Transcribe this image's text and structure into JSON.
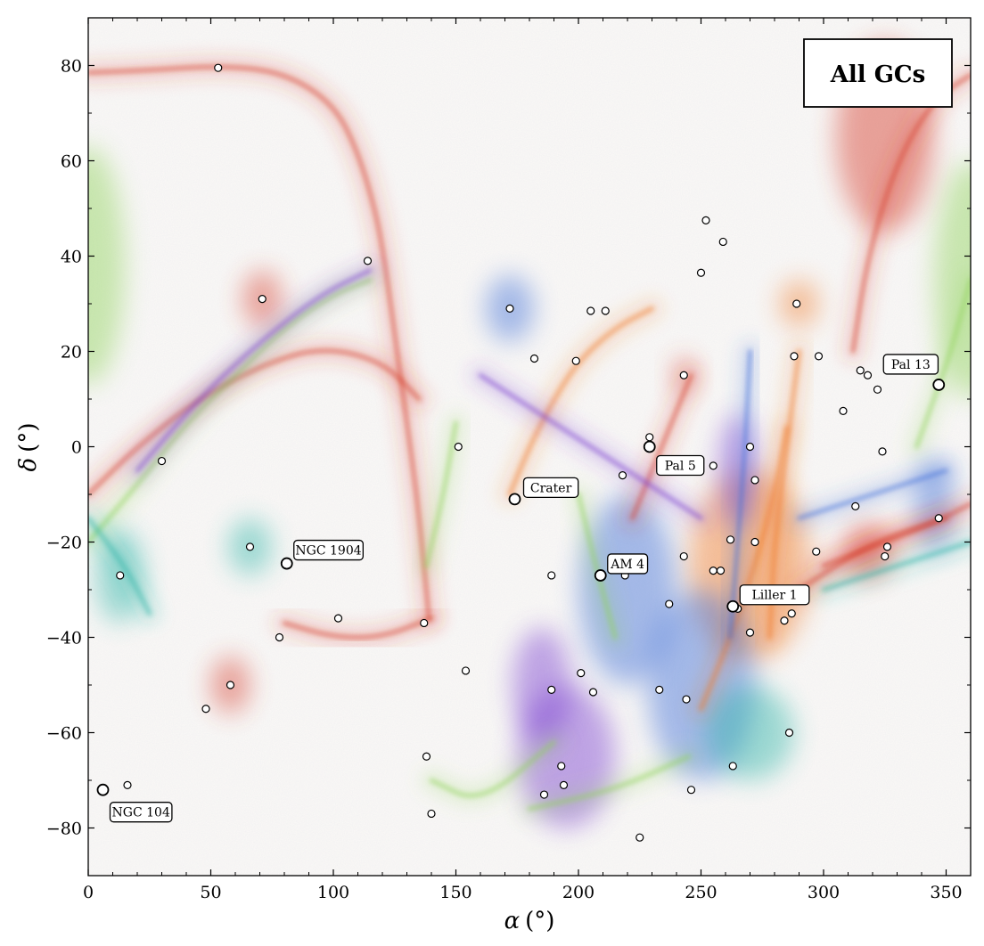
{
  "chart_data": {
    "type": "scatter",
    "title": "",
    "legend_label": "All GCs",
    "legend_position": "top-right",
    "xlabel_symbol": "α",
    "xlabel_unit": "(°)",
    "ylabel_symbol": "δ",
    "ylabel_unit": "(°)",
    "xlim": [
      0,
      360
    ],
    "ylim": [
      -90,
      90
    ],
    "xticks": [
      0,
      50,
      100,
      150,
      200,
      250,
      300,
      350
    ],
    "yticks": [
      -80,
      -60,
      -40,
      -20,
      0,
      20,
      40,
      60,
      80
    ],
    "grid": false,
    "colors": {
      "red": "#d63a2a",
      "orange": "#f07a2a",
      "blue": "#3f6fd8",
      "purple": "#7a3fd0",
      "teal": "#2fb5a8",
      "green": "#8fd35a",
      "point_fill": "#ffffff",
      "point_edge": "#000000"
    },
    "streams": [
      {
        "color": "red",
        "points": [
          [
            0,
            78.5
          ],
          [
            25,
            79
          ],
          [
            55,
            80
          ],
          [
            80,
            78.5
          ],
          [
            100,
            72
          ],
          [
            110,
            62
          ],
          [
            118,
            48
          ],
          [
            122,
            35
          ],
          [
            126,
            20
          ],
          [
            130,
            5
          ],
          [
            134,
            -10
          ],
          [
            137,
            -25
          ],
          [
            139,
            -36
          ]
        ]
      },
      {
        "color": "red",
        "points": [
          [
            0,
            -10
          ],
          [
            20,
            0
          ],
          [
            45,
            10
          ],
          [
            70,
            17
          ],
          [
            95,
            21
          ],
          [
            120,
            18
          ],
          [
            135,
            10
          ]
        ]
      },
      {
        "color": "green",
        "points": [
          [
            0,
            -20
          ],
          [
            20,
            -8
          ],
          [
            40,
            5
          ],
          [
            60,
            15
          ],
          [
            80,
            25
          ],
          [
            100,
            32
          ],
          [
            115,
            35
          ]
        ]
      },
      {
        "color": "purple",
        "points": [
          [
            20,
            -5
          ],
          [
            45,
            10
          ],
          [
            70,
            22
          ],
          [
            95,
            32
          ],
          [
            115,
            37
          ]
        ]
      },
      {
        "color": "orange",
        "points": [
          [
            172,
            -10
          ],
          [
            180,
            0
          ],
          [
            190,
            10
          ],
          [
            200,
            18
          ],
          [
            215,
            25
          ],
          [
            230,
            29
          ]
        ]
      },
      {
        "color": "red",
        "points": [
          [
            222,
            -15
          ],
          [
            230,
            -5
          ],
          [
            238,
            5
          ],
          [
            246,
            15
          ]
        ]
      },
      {
        "color": "orange",
        "points": [
          [
            285,
            4
          ],
          [
            280,
            -10
          ],
          [
            272,
            -25
          ],
          [
            262,
            -40
          ],
          [
            250,
            -55
          ]
        ]
      },
      {
        "color": "red",
        "points": [
          [
            140,
            -36
          ],
          [
            120,
            -40
          ],
          [
            100,
            -40
          ],
          [
            80,
            -37
          ]
        ]
      },
      {
        "color": "green",
        "points": [
          [
            150,
            5
          ],
          [
            145,
            -10
          ],
          [
            138,
            -25
          ]
        ]
      },
      {
        "color": "green",
        "points": [
          [
            360,
            35
          ],
          [
            352,
            20
          ],
          [
            345,
            10
          ],
          [
            338,
            0
          ]
        ]
      },
      {
        "color": "red",
        "points": [
          [
            360,
            -12
          ],
          [
            345,
            -16
          ],
          [
            320,
            -21
          ],
          [
            300,
            -25
          ]
        ]
      },
      {
        "color": "red",
        "points": [
          [
            360,
            78
          ],
          [
            345,
            73
          ],
          [
            330,
            60
          ],
          [
            318,
            40
          ],
          [
            312,
            20
          ]
        ]
      },
      {
        "color": "green",
        "points": [
          [
            190,
            -62
          ],
          [
            160,
            -75
          ],
          [
            140,
            -70
          ]
        ]
      },
      {
        "color": "green",
        "points": [
          [
            245,
            -65
          ],
          [
            215,
            -72
          ],
          [
            180,
            -76
          ]
        ]
      },
      {
        "color": "teal",
        "points": [
          [
            0,
            -15
          ],
          [
            15,
            -25
          ],
          [
            25,
            -35
          ]
        ]
      },
      {
        "color": "teal",
        "points": [
          [
            300,
            -30
          ],
          [
            330,
            -25
          ],
          [
            360,
            -20
          ]
        ]
      },
      {
        "color": "red",
        "points": [
          [
            290,
            -30
          ],
          [
            320,
            -20
          ],
          [
            350,
            -15
          ]
        ]
      },
      {
        "color": "blue",
        "points": [
          [
            290,
            -15
          ],
          [
            320,
            -10
          ],
          [
            350,
            -5
          ]
        ]
      },
      {
        "color": "purple",
        "points": [
          [
            160,
            15
          ],
          [
            190,
            5
          ],
          [
            220,
            -5
          ],
          [
            250,
            -15
          ]
        ]
      },
      {
        "color": "blue",
        "points": [
          [
            270,
            20
          ],
          [
            268,
            0
          ],
          [
            265,
            -20
          ],
          [
            262,
            -40
          ]
        ]
      },
      {
        "color": "orange",
        "points": [
          [
            290,
            20
          ],
          [
            285,
            0
          ],
          [
            280,
            -20
          ],
          [
            278,
            -40
          ]
        ]
      },
      {
        "color": "green",
        "points": [
          [
            200,
            -10
          ],
          [
            207,
            -25
          ],
          [
            215,
            -40
          ]
        ]
      }
    ],
    "blobs": [
      {
        "color": "blue",
        "x": 172,
        "y": 29,
        "rx": 10,
        "ry": 7
      },
      {
        "color": "red",
        "x": 243,
        "y": 15,
        "rx": 4,
        "ry": 4
      },
      {
        "color": "red",
        "x": 71,
        "y": 31,
        "rx": 8,
        "ry": 6
      },
      {
        "color": "red",
        "x": 58,
        "y": -50,
        "rx": 8,
        "ry": 6
      },
      {
        "color": "teal",
        "x": 66,
        "y": -21,
        "rx": 9,
        "ry": 6
      },
      {
        "color": "teal",
        "x": 13,
        "y": -27,
        "rx": 10,
        "ry": 10
      },
      {
        "color": "orange",
        "x": 270,
        "y": -25,
        "rx": 25,
        "ry": 20
      },
      {
        "color": "blue",
        "x": 250,
        "y": -50,
        "rx": 22,
        "ry": 20
      },
      {
        "color": "purple",
        "x": 195,
        "y": -65,
        "rx": 20,
        "ry": 15
      },
      {
        "color": "purple",
        "x": 185,
        "y": -50,
        "rx": 12,
        "ry": 12
      },
      {
        "color": "purple",
        "x": 265,
        "y": -5,
        "rx": 8,
        "ry": 12
      },
      {
        "color": "orange",
        "x": 290,
        "y": 30,
        "rx": 8,
        "ry": 5
      },
      {
        "color": "teal",
        "x": 270,
        "y": -60,
        "rx": 18,
        "ry": 10
      },
      {
        "color": "blue",
        "x": 220,
        "y": -30,
        "rx": 20,
        "ry": 20
      },
      {
        "color": "red",
        "x": 318,
        "y": -22,
        "rx": 10,
        "ry": 6
      },
      {
        "color": "green",
        "x": 0,
        "y": 38,
        "rx": 15,
        "ry": 25
      },
      {
        "color": "green",
        "x": 360,
        "y": 35,
        "rx": 15,
        "ry": 25
      },
      {
        "color": "blue",
        "x": 345,
        "y": -12,
        "rx": 8,
        "ry": 10
      },
      {
        "color": "red",
        "x": 325,
        "y": 65,
        "rx": 20,
        "ry": 20
      }
    ],
    "small_gcs": [
      [
        53,
        79.5
      ],
      [
        114,
        39
      ],
      [
        71,
        31
      ],
      [
        30,
        -3
      ],
      [
        13,
        -27
      ],
      [
        66,
        -21
      ],
      [
        102,
        -36
      ],
      [
        78,
        -40
      ],
      [
        58,
        -50
      ],
      [
        48,
        -55
      ],
      [
        16,
        -71
      ],
      [
        137,
        -37
      ],
      [
        154,
        -47
      ],
      [
        151,
        0
      ],
      [
        182,
        18.5
      ],
      [
        172,
        29
      ],
      [
        199,
        18
      ],
      [
        205,
        28.5
      ],
      [
        211,
        28.5
      ],
      [
        250,
        36.5
      ],
      [
        252,
        47.5
      ],
      [
        259,
        43
      ],
      [
        243,
        15
      ],
      [
        229,
        2
      ],
      [
        218,
        -6
      ],
      [
        189,
        -27
      ],
      [
        201,
        -47.5
      ],
      [
        206,
        -51.5
      ],
      [
        189,
        -51
      ],
      [
        233,
        -51
      ],
      [
        255,
        -4
      ],
      [
        255,
        -26
      ],
      [
        258,
        -26
      ],
      [
        262,
        -19.5
      ],
      [
        265,
        -34
      ],
      [
        272,
        -7
      ],
      [
        272,
        -20
      ],
      [
        270,
        0
      ],
      [
        243,
        -23
      ],
      [
        237,
        -33
      ],
      [
        244,
        -53
      ],
      [
        286,
        -60
      ],
      [
        284,
        -36.5
      ],
      [
        287,
        -35
      ],
      [
        289,
        30
      ],
      [
        288,
        19
      ],
      [
        298,
        19
      ],
      [
        308,
        7.5
      ],
      [
        313,
        -12.5
      ],
      [
        315,
        16
      ],
      [
        318,
        15
      ],
      [
        322,
        12
      ],
      [
        324,
        -1
      ],
      [
        297,
        -22
      ],
      [
        292,
        -31
      ],
      [
        325,
        -23
      ],
      [
        326,
        -21
      ],
      [
        347,
        -15
      ],
      [
        138,
        -65
      ],
      [
        140,
        -77
      ],
      [
        186,
        -73
      ],
      [
        193,
        -67
      ],
      [
        194,
        -71
      ],
      [
        225,
        -82
      ],
      [
        246,
        -72
      ],
      [
        263,
        -67
      ],
      [
        219,
        -27
      ],
      [
        270,
        -39
      ]
    ],
    "named_gcs": [
      {
        "name": "NGC 104",
        "x": 6,
        "y": -72
      },
      {
        "name": "NGC 1904",
        "x": 81,
        "y": -24.5
      },
      {
        "name": "Crater",
        "x": 174,
        "y": -11
      },
      {
        "name": "AM 4",
        "x": 209,
        "y": -27
      },
      {
        "name": "Pal 5",
        "x": 229,
        "y": 0
      },
      {
        "name": "Liller 1",
        "x": 263,
        "y": -33.5
      },
      {
        "name": "Pal 13",
        "x": 347,
        "y": 13
      }
    ]
  }
}
